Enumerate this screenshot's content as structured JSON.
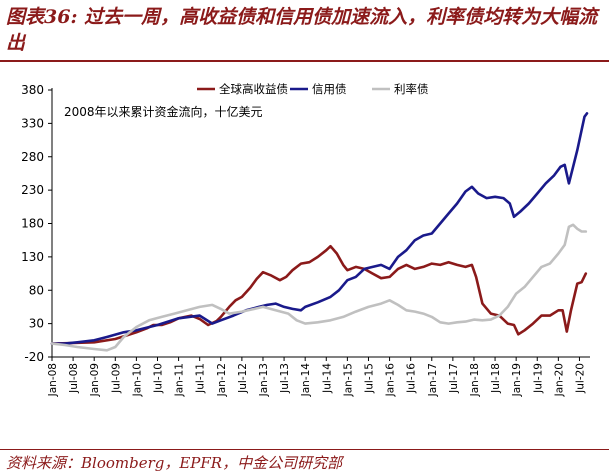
{
  "title": "图表36: 过去一周，高收益债和信用债加速流入，利率债均转为大幅流出",
  "source": "资料来源：Bloomberg，EPFR，中金公司研究部",
  "chart_data": {
    "type": "line",
    "annotation": "2008年以来累计资金流向，十亿美元",
    "ylim": [
      -20,
      380
    ],
    "yticks": [
      -20,
      30,
      80,
      130,
      180,
      230,
      280,
      330,
      380
    ],
    "xlim": [
      2008.0,
      2020.75
    ],
    "xticks": [
      {
        "label": "Jan-08",
        "t": 2008.0
      },
      {
        "label": "Jul-08",
        "t": 2008.5
      },
      {
        "label": "Jan-09",
        "t": 2009.0
      },
      {
        "label": "Jul-09",
        "t": 2009.5
      },
      {
        "label": "Jan-10",
        "t": 2010.0
      },
      {
        "label": "Jul-10",
        "t": 2010.5
      },
      {
        "label": "Jan-11",
        "t": 2011.0
      },
      {
        "label": "Jul-11",
        "t": 2011.5
      },
      {
        "label": "Jan-12",
        "t": 2012.0
      },
      {
        "label": "Jul-12",
        "t": 2012.5
      },
      {
        "label": "Jan-13",
        "t": 2013.0
      },
      {
        "label": "Jul-13",
        "t": 2013.5
      },
      {
        "label": "Jan-14",
        "t": 2014.0
      },
      {
        "label": "Jul-14",
        "t": 2014.5
      },
      {
        "label": "Jan-15",
        "t": 2015.0
      },
      {
        "label": "Jul-15",
        "t": 2015.5
      },
      {
        "label": "Jan-16",
        "t": 2016.0
      },
      {
        "label": "Jul-16",
        "t": 2016.5
      },
      {
        "label": "Jan-17",
        "t": 2017.0
      },
      {
        "label": "Jul-17",
        "t": 2017.5
      },
      {
        "label": "Jan-18",
        "t": 2018.0
      },
      {
        "label": "Jul-18",
        "t": 2018.5
      },
      {
        "label": "Jan-19",
        "t": 2019.0
      },
      {
        "label": "Jul-19",
        "t": 2019.5
      },
      {
        "label": "Jan-20",
        "t": 2020.0
      },
      {
        "label": "Jul-20",
        "t": 2020.5
      }
    ],
    "grid": false,
    "legend_position": "top-right",
    "series": [
      {
        "name": "全球高收益债",
        "color": "#8b1a1a",
        "points": [
          [
            2008.0,
            0
          ],
          [
            2008.5,
            1
          ],
          [
            2009.0,
            2
          ],
          [
            2009.5,
            7
          ],
          [
            2009.8,
            13
          ],
          [
            2010.0,
            17
          ],
          [
            2010.25,
            23
          ],
          [
            2010.4,
            28
          ],
          [
            2010.6,
            28
          ],
          [
            2010.8,
            32
          ],
          [
            2011.0,
            38
          ],
          [
            2011.3,
            42
          ],
          [
            2011.5,
            37
          ],
          [
            2011.7,
            28
          ],
          [
            2011.9,
            34
          ],
          [
            2012.0,
            40
          ],
          [
            2012.2,
            55
          ],
          [
            2012.35,
            65
          ],
          [
            2012.5,
            70
          ],
          [
            2012.7,
            84
          ],
          [
            2012.85,
            97
          ],
          [
            2013.0,
            107
          ],
          [
            2013.2,
            102
          ],
          [
            2013.4,
            95
          ],
          [
            2013.55,
            100
          ],
          [
            2013.7,
            110
          ],
          [
            2013.9,
            120
          ],
          [
            2014.1,
            122
          ],
          [
            2014.3,
            130
          ],
          [
            2014.5,
            140
          ],
          [
            2014.6,
            146
          ],
          [
            2014.75,
            135
          ],
          [
            2014.9,
            118
          ],
          [
            2015.0,
            110
          ],
          [
            2015.2,
            115
          ],
          [
            2015.4,
            112
          ],
          [
            2015.6,
            105
          ],
          [
            2015.8,
            98
          ],
          [
            2016.0,
            100
          ],
          [
            2016.2,
            112
          ],
          [
            2016.4,
            118
          ],
          [
            2016.6,
            112
          ],
          [
            2016.8,
            115
          ],
          [
            2017.0,
            120
          ],
          [
            2017.2,
            118
          ],
          [
            2017.4,
            122
          ],
          [
            2017.6,
            118
          ],
          [
            2017.8,
            115
          ],
          [
            2017.95,
            118
          ],
          [
            2018.05,
            100
          ],
          [
            2018.2,
            60
          ],
          [
            2018.4,
            45
          ],
          [
            2018.6,
            42
          ],
          [
            2018.8,
            30
          ],
          [
            2018.95,
            28
          ],
          [
            2019.05,
            14
          ],
          [
            2019.2,
            20
          ],
          [
            2019.4,
            30
          ],
          [
            2019.6,
            42
          ],
          [
            2019.8,
            42
          ],
          [
            2020.0,
            50
          ],
          [
            2020.1,
            50
          ],
          [
            2020.2,
            18
          ],
          [
            2020.3,
            50
          ],
          [
            2020.45,
            90
          ],
          [
            2020.55,
            92
          ],
          [
            2020.65,
            105
          ]
        ]
      },
      {
        "name": "信用债",
        "color": "#1a1a8b",
        "points": [
          [
            2008.0,
            0
          ],
          [
            2008.3,
            0
          ],
          [
            2008.6,
            2
          ],
          [
            2009.0,
            5
          ],
          [
            2009.3,
            10
          ],
          [
            2009.7,
            17
          ],
          [
            2010.0,
            20
          ],
          [
            2010.5,
            28
          ],
          [
            2011.0,
            38
          ],
          [
            2011.5,
            42
          ],
          [
            2011.8,
            30
          ],
          [
            2012.0,
            35
          ],
          [
            2012.3,
            42
          ],
          [
            2012.6,
            50
          ],
          [
            2012.9,
            55
          ],
          [
            2013.1,
            58
          ],
          [
            2013.3,
            60
          ],
          [
            2013.5,
            55
          ],
          [
            2013.7,
            52
          ],
          [
            2013.9,
            50
          ],
          [
            2014.0,
            55
          ],
          [
            2014.3,
            62
          ],
          [
            2014.6,
            70
          ],
          [
            2014.8,
            80
          ],
          [
            2015.0,
            95
          ],
          [
            2015.2,
            100
          ],
          [
            2015.4,
            112
          ],
          [
            2015.6,
            115
          ],
          [
            2015.8,
            118
          ],
          [
            2016.0,
            112
          ],
          [
            2016.2,
            130
          ],
          [
            2016.4,
            140
          ],
          [
            2016.6,
            155
          ],
          [
            2016.8,
            162
          ],
          [
            2017.0,
            165
          ],
          [
            2017.2,
            180
          ],
          [
            2017.4,
            195
          ],
          [
            2017.6,
            210
          ],
          [
            2017.8,
            228
          ],
          [
            2017.95,
            235
          ],
          [
            2018.1,
            225
          ],
          [
            2018.3,
            218
          ],
          [
            2018.5,
            220
          ],
          [
            2018.7,
            218
          ],
          [
            2018.85,
            210
          ],
          [
            2018.95,
            190
          ],
          [
            2019.1,
            198
          ],
          [
            2019.3,
            210
          ],
          [
            2019.5,
            225
          ],
          [
            2019.7,
            240
          ],
          [
            2019.9,
            252
          ],
          [
            2020.05,
            265
          ],
          [
            2020.15,
            268
          ],
          [
            2020.25,
            240
          ],
          [
            2020.35,
            265
          ],
          [
            2020.45,
            290
          ],
          [
            2020.55,
            320
          ],
          [
            2020.62,
            340
          ],
          [
            2020.68,
            345
          ]
        ]
      },
      {
        "name": "利率债",
        "color": "#c0c0c0",
        "points": [
          [
            2008.0,
            0
          ],
          [
            2008.3,
            -2
          ],
          [
            2008.6,
            -5
          ],
          [
            2009.0,
            -8
          ],
          [
            2009.3,
            -10
          ],
          [
            2009.5,
            -5
          ],
          [
            2009.7,
            10
          ],
          [
            2010.0,
            25
          ],
          [
            2010.3,
            35
          ],
          [
            2010.6,
            40
          ],
          [
            2010.9,
            45
          ],
          [
            2011.2,
            50
          ],
          [
            2011.5,
            55
          ],
          [
            2011.8,
            58
          ],
          [
            2012.0,
            52
          ],
          [
            2012.2,
            45
          ],
          [
            2012.5,
            48
          ],
          [
            2012.8,
            52
          ],
          [
            2013.0,
            55
          ],
          [
            2013.3,
            50
          ],
          [
            2013.6,
            45
          ],
          [
            2013.8,
            35
          ],
          [
            2014.0,
            30
          ],
          [
            2014.3,
            32
          ],
          [
            2014.6,
            35
          ],
          [
            2014.9,
            40
          ],
          [
            2015.2,
            48
          ],
          [
            2015.5,
            55
          ],
          [
            2015.8,
            60
          ],
          [
            2016.0,
            65
          ],
          [
            2016.2,
            58
          ],
          [
            2016.4,
            50
          ],
          [
            2016.6,
            48
          ],
          [
            2016.8,
            45
          ],
          [
            2017.0,
            40
          ],
          [
            2017.2,
            32
          ],
          [
            2017.4,
            30
          ],
          [
            2017.6,
            32
          ],
          [
            2017.8,
            33
          ],
          [
            2018.0,
            36
          ],
          [
            2018.2,
            35
          ],
          [
            2018.4,
            36
          ],
          [
            2018.6,
            42
          ],
          [
            2018.8,
            55
          ],
          [
            2019.0,
            75
          ],
          [
            2019.2,
            85
          ],
          [
            2019.4,
            100
          ],
          [
            2019.6,
            115
          ],
          [
            2019.8,
            120
          ],
          [
            2020.0,
            135
          ],
          [
            2020.15,
            148
          ],
          [
            2020.25,
            175
          ],
          [
            2020.35,
            178
          ],
          [
            2020.45,
            172
          ],
          [
            2020.55,
            168
          ],
          [
            2020.65,
            168
          ]
        ]
      }
    ]
  }
}
